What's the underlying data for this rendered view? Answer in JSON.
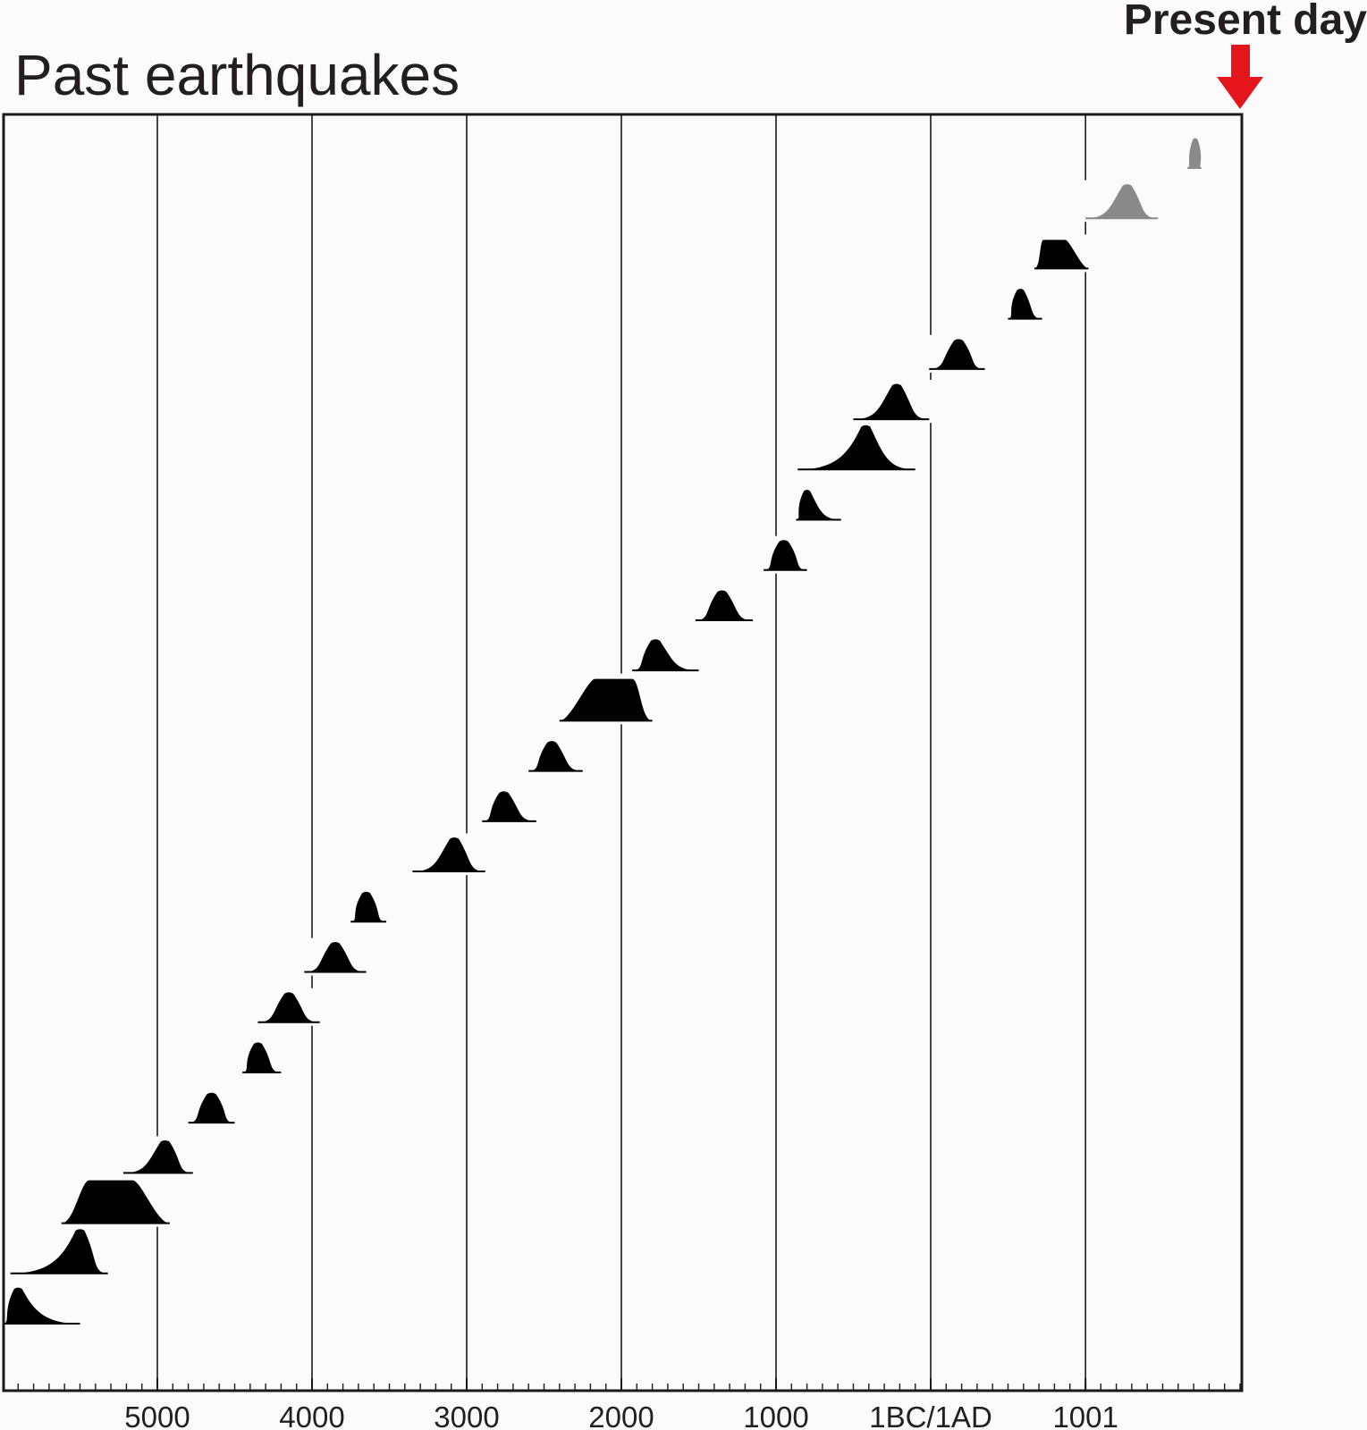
{
  "chart_data": {
    "type": "area",
    "title": "Past earthquakes",
    "annotation": "Present day",
    "x_axis": {
      "unit": "year BC/AD",
      "range": [
        -6000,
        2025
      ],
      "ticks": [
        {
          "value": -5000,
          "label": "5000"
        },
        {
          "value": -4000,
          "label": "4000"
        },
        {
          "value": -3000,
          "label": "3000"
        },
        {
          "value": -2000,
          "label": "2000"
        },
        {
          "value": -1000,
          "label": "1000"
        },
        {
          "value": 0,
          "label": "1BC/1AD"
        },
        {
          "value": 1001,
          "label": "1001"
        }
      ],
      "minor_tick_step": 100
    },
    "grid": true,
    "colors": {
      "event": "#000000",
      "historic_event": "#8a8a8a",
      "arrow": "#e4161b",
      "axis": "#1a1a1a"
    },
    "events": [
      {
        "peak": -5900,
        "start": -6000,
        "end": -5500,
        "shape": "peak"
      },
      {
        "peak": -5500,
        "start": -5950,
        "end": -5320,
        "shape": "peak"
      },
      {
        "peak": -5300,
        "start": -5620,
        "end": -4920,
        "shape": "plateau"
      },
      {
        "peak": -4950,
        "start": -5220,
        "end": -4770,
        "shape": "peak"
      },
      {
        "peak": -4650,
        "start": -4800,
        "end": -4500,
        "shape": "peak"
      },
      {
        "peak": -4350,
        "start": -4450,
        "end": -4200,
        "shape": "peak"
      },
      {
        "peak": -4150,
        "start": -4350,
        "end": -3950,
        "shape": "peak"
      },
      {
        "peak": -3850,
        "start": -4050,
        "end": -3650,
        "shape": "peak"
      },
      {
        "peak": -3650,
        "start": -3750,
        "end": -3520,
        "shape": "peak"
      },
      {
        "peak": -3080,
        "start": -3350,
        "end": -2880,
        "shape": "peak"
      },
      {
        "peak": -2760,
        "start": -2900,
        "end": -2550,
        "shape": "peak"
      },
      {
        "peak": -2450,
        "start": -2600,
        "end": -2250,
        "shape": "peak"
      },
      {
        "peak": -2050,
        "start": -2400,
        "end": -1800,
        "shape": "plateau"
      },
      {
        "peak": -1780,
        "start": -1930,
        "end": -1500,
        "shape": "peak"
      },
      {
        "peak": -1350,
        "start": -1520,
        "end": -1150,
        "shape": "peak"
      },
      {
        "peak": -950,
        "start": -1080,
        "end": -800,
        "shape": "peak"
      },
      {
        "peak": -800,
        "start": -870,
        "end": -580,
        "shape": "peak"
      },
      {
        "peak": -420,
        "start": -860,
        "end": -100,
        "shape": "peak"
      },
      {
        "peak": -220,
        "start": -500,
        "end": -10,
        "shape": "peak"
      },
      {
        "peak": 180,
        "start": -10,
        "end": 350,
        "shape": "peak"
      },
      {
        "peak": 580,
        "start": 500,
        "end": 720,
        "shape": "peak"
      },
      {
        "peak": 800,
        "start": 670,
        "end": 1020,
        "shape": "plateau"
      },
      {
        "peak": 1270,
        "start": 1000,
        "end": 1470,
        "shape": "peak",
        "historic": true
      },
      {
        "peak": 1710,
        "start": 1660,
        "end": 1750,
        "shape": "peak",
        "historic": true
      }
    ]
  }
}
